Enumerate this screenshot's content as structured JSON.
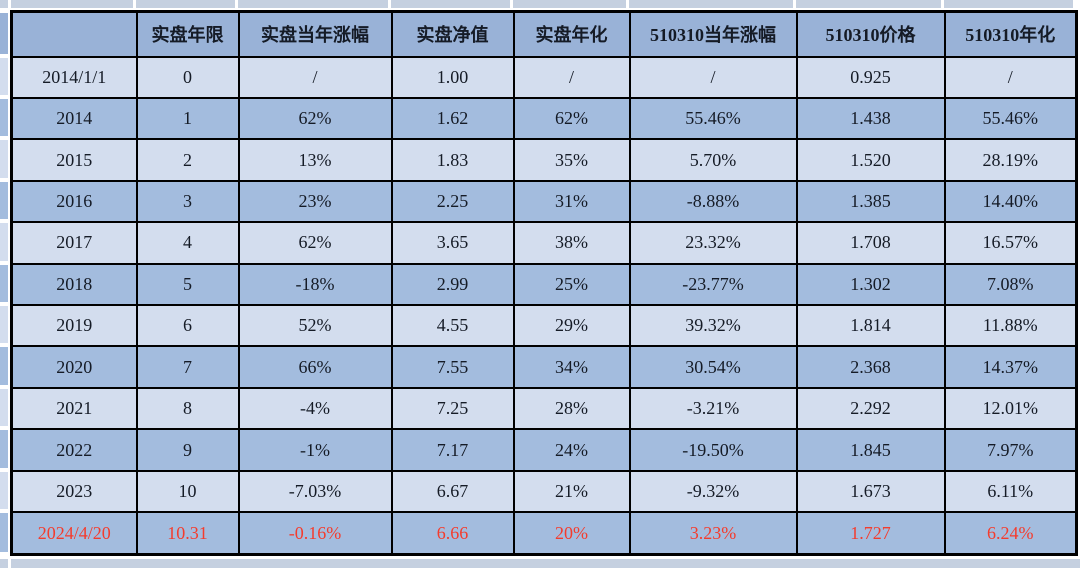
{
  "chart_data": {
    "type": "table",
    "columns": [
      "",
      "实盘年限",
      "实盘当年涨幅",
      "实盘净值",
      "实盘年化",
      "510310当年涨幅",
      "510310价格",
      "510310年化"
    ],
    "rows": [
      {
        "cells": [
          "2014/1/1",
          "0",
          "/",
          "1.00",
          "/",
          "/",
          "0.925",
          "/"
        ],
        "shade": "light",
        "text_color": "default"
      },
      {
        "cells": [
          "2014",
          "1",
          "62%",
          "1.62",
          "62%",
          "55.46%",
          "1.438",
          "55.46%"
        ],
        "shade": "dark",
        "text_color": "default"
      },
      {
        "cells": [
          "2015",
          "2",
          "13%",
          "1.83",
          "35%",
          "5.70%",
          "1.520",
          "28.19%"
        ],
        "shade": "light",
        "text_color": "default"
      },
      {
        "cells": [
          "2016",
          "3",
          "23%",
          "2.25",
          "31%",
          "-8.88%",
          "1.385",
          "14.40%"
        ],
        "shade": "dark",
        "text_color": "default"
      },
      {
        "cells": [
          "2017",
          "4",
          "62%",
          "3.65",
          "38%",
          "23.32%",
          "1.708",
          "16.57%"
        ],
        "shade": "light",
        "text_color": "default"
      },
      {
        "cells": [
          "2018",
          "5",
          "-18%",
          "2.99",
          "25%",
          "-23.77%",
          "1.302",
          "7.08%"
        ],
        "shade": "dark",
        "text_color": "default"
      },
      {
        "cells": [
          "2019",
          "6",
          "52%",
          "4.55",
          "29%",
          "39.32%",
          "1.814",
          "11.88%"
        ],
        "shade": "light",
        "text_color": "default"
      },
      {
        "cells": [
          "2020",
          "7",
          "66%",
          "7.55",
          "34%",
          "30.54%",
          "2.368",
          "14.37%"
        ],
        "shade": "dark",
        "text_color": "default"
      },
      {
        "cells": [
          "2021",
          "8",
          "-4%",
          "7.25",
          "28%",
          "-3.21%",
          "2.292",
          "12.01%"
        ],
        "shade": "light",
        "text_color": "default"
      },
      {
        "cells": [
          "2022",
          "9",
          "-1%",
          "7.17",
          "24%",
          "-19.50%",
          "1.845",
          "7.97%"
        ],
        "shade": "dark",
        "text_color": "default"
      },
      {
        "cells": [
          "2023",
          "10",
          "-7.03%",
          "6.67",
          "21%",
          "-9.32%",
          "1.673",
          "6.11%"
        ],
        "shade": "light",
        "text_color": "default"
      },
      {
        "cells": [
          "2024/4/20",
          "10.31",
          "-0.16%",
          "6.66",
          "20%",
          "3.23%",
          "1.727",
          "6.24%"
        ],
        "shade": "dark",
        "text_color": "red"
      }
    ],
    "colors": {
      "header_fill": "#99B2D7",
      "row_dark": "#A3BCDE",
      "row_light": "#D3DDEE",
      "edge_partial_fill": "#C5D0E0",
      "grid_border": "#000000",
      "text": "#151B26",
      "highlight_text": "#F43C2D"
    }
  }
}
